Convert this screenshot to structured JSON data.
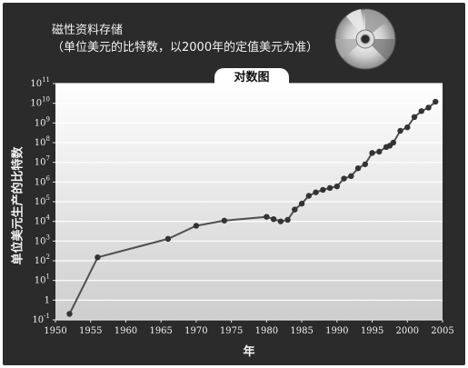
{
  "title_line1": "磁性资料存储",
  "title_line2": "（单位美元的比特数，以2000年的定值美元为准）",
  "scale_tab": "对数图",
  "icon": "cd-disc-icon",
  "colors": {
    "background": "#2b2b2b",
    "line": "#4a4a4a",
    "text": "#f2f2f2"
  },
  "chart_data": {
    "type": "line",
    "title": "磁性资料存储",
    "subtitle": "（单位美元的比特数，以2000年的定值美元为准）",
    "xlabel": "年",
    "ylabel": "单位美元生产的比特数",
    "yscale": "log",
    "xlim": [
      1950,
      2005
    ],
    "ylim": [
      0.1,
      100000000000
    ],
    "x_ticks": [
      1950,
      1955,
      1960,
      1965,
      1970,
      1975,
      1980,
      1985,
      1990,
      1995,
      2000,
      2005
    ],
    "y_tick_exponents": [
      -1,
      0,
      1,
      2,
      3,
      4,
      5,
      6,
      7,
      8,
      9,
      10,
      11
    ],
    "grid": true,
    "points": [
      [
        1952,
        0.2
      ],
      [
        1956,
        150
      ],
      [
        1966,
        1300
      ],
      [
        1970,
        6000
      ],
      [
        1974,
        11000
      ],
      [
        1980,
        17000
      ],
      [
        1981,
        13000
      ],
      [
        1982,
        10000
      ],
      [
        1983,
        12000
      ],
      [
        1984,
        40000
      ],
      [
        1985,
        80000
      ],
      [
        1986,
        200000
      ],
      [
        1987,
        300000
      ],
      [
        1988,
        400000
      ],
      [
        1989,
        500000
      ],
      [
        1990,
        600000
      ],
      [
        1991,
        1500000
      ],
      [
        1992,
        2000000
      ],
      [
        1993,
        5000000
      ],
      [
        1994,
        8000000
      ],
      [
        1995,
        30000000
      ],
      [
        1996,
        35000000
      ],
      [
        1997,
        60000000
      ],
      [
        1997.5,
        70000000
      ],
      [
        1998,
        100000000
      ],
      [
        1999,
        400000000
      ],
      [
        2000,
        600000000
      ],
      [
        2001,
        2000000000
      ],
      [
        2002,
        4000000000
      ],
      [
        2003,
        6000000000
      ],
      [
        2004,
        12000000000
      ]
    ]
  }
}
